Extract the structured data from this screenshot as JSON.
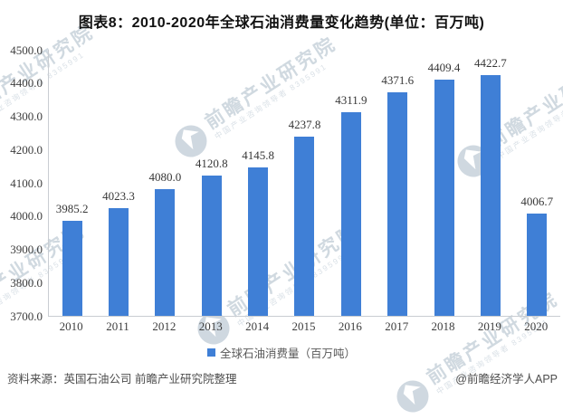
{
  "title": "图表8：2010-2020年全球石油消费量变化趋势(单位：百万吨)",
  "chart_data": {
    "type": "bar",
    "title": "图表8：2010-2020年全球石油消费量变化趋势(单位：百万吨)",
    "categories": [
      "2010",
      "2011",
      "2012",
      "2013",
      "2014",
      "2015",
      "2016",
      "2017",
      "2018",
      "2019",
      "2020"
    ],
    "values": [
      3985.2,
      4023.3,
      4080.0,
      4120.8,
      4145.8,
      4237.8,
      4311.9,
      4371.6,
      4409.4,
      4422.7,
      4006.7
    ],
    "series_name": "全球石油消费量（百万吨）",
    "unit": "百万吨",
    "xlabel": "",
    "ylabel": "",
    "ylim": [
      3700,
      4500
    ],
    "ytick_step": 100,
    "grid": false,
    "legend_position": "bottom",
    "bar_color": "#3f7fd6"
  },
  "legend": {
    "label": "全球石油消费量（百万吨）",
    "marker_color": "#3f7fd6"
  },
  "footer": {
    "source": "资料来源：英国石油公司 前瞻产业研究院整理",
    "credit": "@前瞻经济学人APP"
  },
  "watermark": {
    "brand": "前瞻产业研究院",
    "subtext": "中国产业咨询领导者",
    "digits": "8395991"
  },
  "colors": {
    "bar": "#3f7fd6",
    "axis_line": "#c9cdd2",
    "tick_text": "#3d3d3d",
    "footer_text": "#4d4d4d",
    "watermark": "#d3dbe2"
  }
}
